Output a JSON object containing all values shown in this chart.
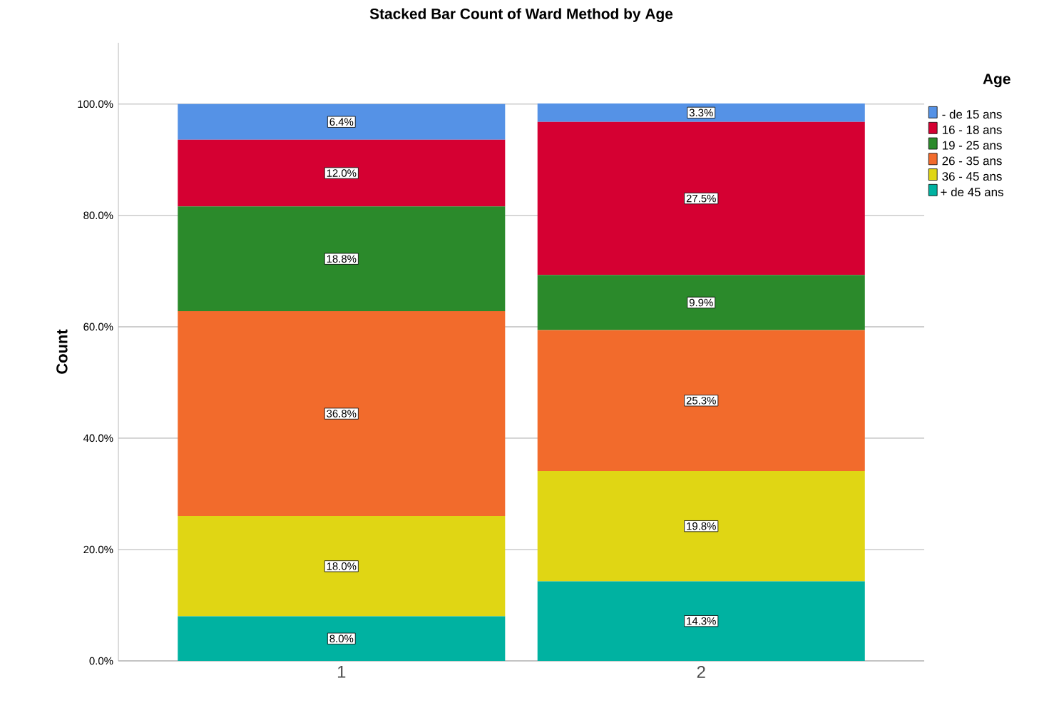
{
  "chart_data": {
    "type": "bar",
    "stacked": true,
    "title": "Stacked Bar Count of Ward Method by Age",
    "ylabel": "Count",
    "legend_title": "Age",
    "categories": [
      "1",
      "2"
    ],
    "series": [
      {
        "name": "+ de 45 ans",
        "color": "#00b2a1",
        "values": [
          8.0,
          14.3
        ],
        "value_labels": [
          "8.0%",
          "14.3%"
        ]
      },
      {
        "name": "36 - 45 ans",
        "color": "#e0d614",
        "values": [
          18.0,
          19.8
        ],
        "value_labels": [
          "18.0%",
          "19.8%"
        ]
      },
      {
        "name": "26 - 35 ans",
        "color": "#f26b2c",
        "values": [
          36.8,
          25.3
        ],
        "value_labels": [
          "36.8%",
          "25.3%"
        ]
      },
      {
        "name": "19 - 25 ans",
        "color": "#2b8a2b",
        "values": [
          18.8,
          9.9
        ],
        "value_labels": [
          "18.8%",
          "9.9%"
        ]
      },
      {
        "name": "16 - 18 ans",
        "color": "#d50032",
        "values": [
          12.0,
          27.5
        ],
        "value_labels": [
          "12.0%",
          "27.5%"
        ]
      },
      {
        "name": "- de 15 ans",
        "color": "#5592e6",
        "values": [
          6.4,
          3.3
        ],
        "value_labels": [
          "6.4%",
          "3.3%"
        ]
      }
    ],
    "ylim": [
      0,
      111
    ],
    "yticks": [
      {
        "value": 0,
        "label": "0.0%"
      },
      {
        "value": 20,
        "label": "20.0%"
      },
      {
        "value": 40,
        "label": "40.0%"
      },
      {
        "value": 60,
        "label": "60.0%"
      },
      {
        "value": 80,
        "label": "80.0%"
      },
      {
        "value": 100,
        "label": "100.0%"
      }
    ],
    "grid": "y",
    "legend": "right"
  }
}
